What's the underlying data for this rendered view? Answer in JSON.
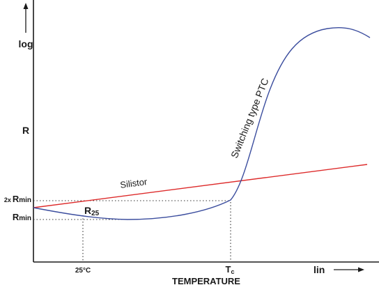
{
  "axes": {
    "y_label_top": "log",
    "y_label_mid": "R",
    "x_label_right": "lin",
    "x_title": "TEMPERATURE"
  },
  "y_markers": {
    "double_min_prefix": "2x",
    "double_min_symbol": "R",
    "double_min_sub": "min",
    "min_symbol": "R",
    "min_sub": "min"
  },
  "x_markers": {
    "ref_temp": "25°C",
    "tc_symbol": "T",
    "tc_sub": "c"
  },
  "curves": {
    "silistor_label": "Silistor",
    "ptc_label": "Switching type PTC",
    "r25_symbol": "R",
    "r25_sub": "25"
  },
  "colors": {
    "silistor": "#dd2a2a",
    "ptc": "#3b4d9e",
    "axis": "#1a1a1a",
    "guide": "#333333"
  }
}
